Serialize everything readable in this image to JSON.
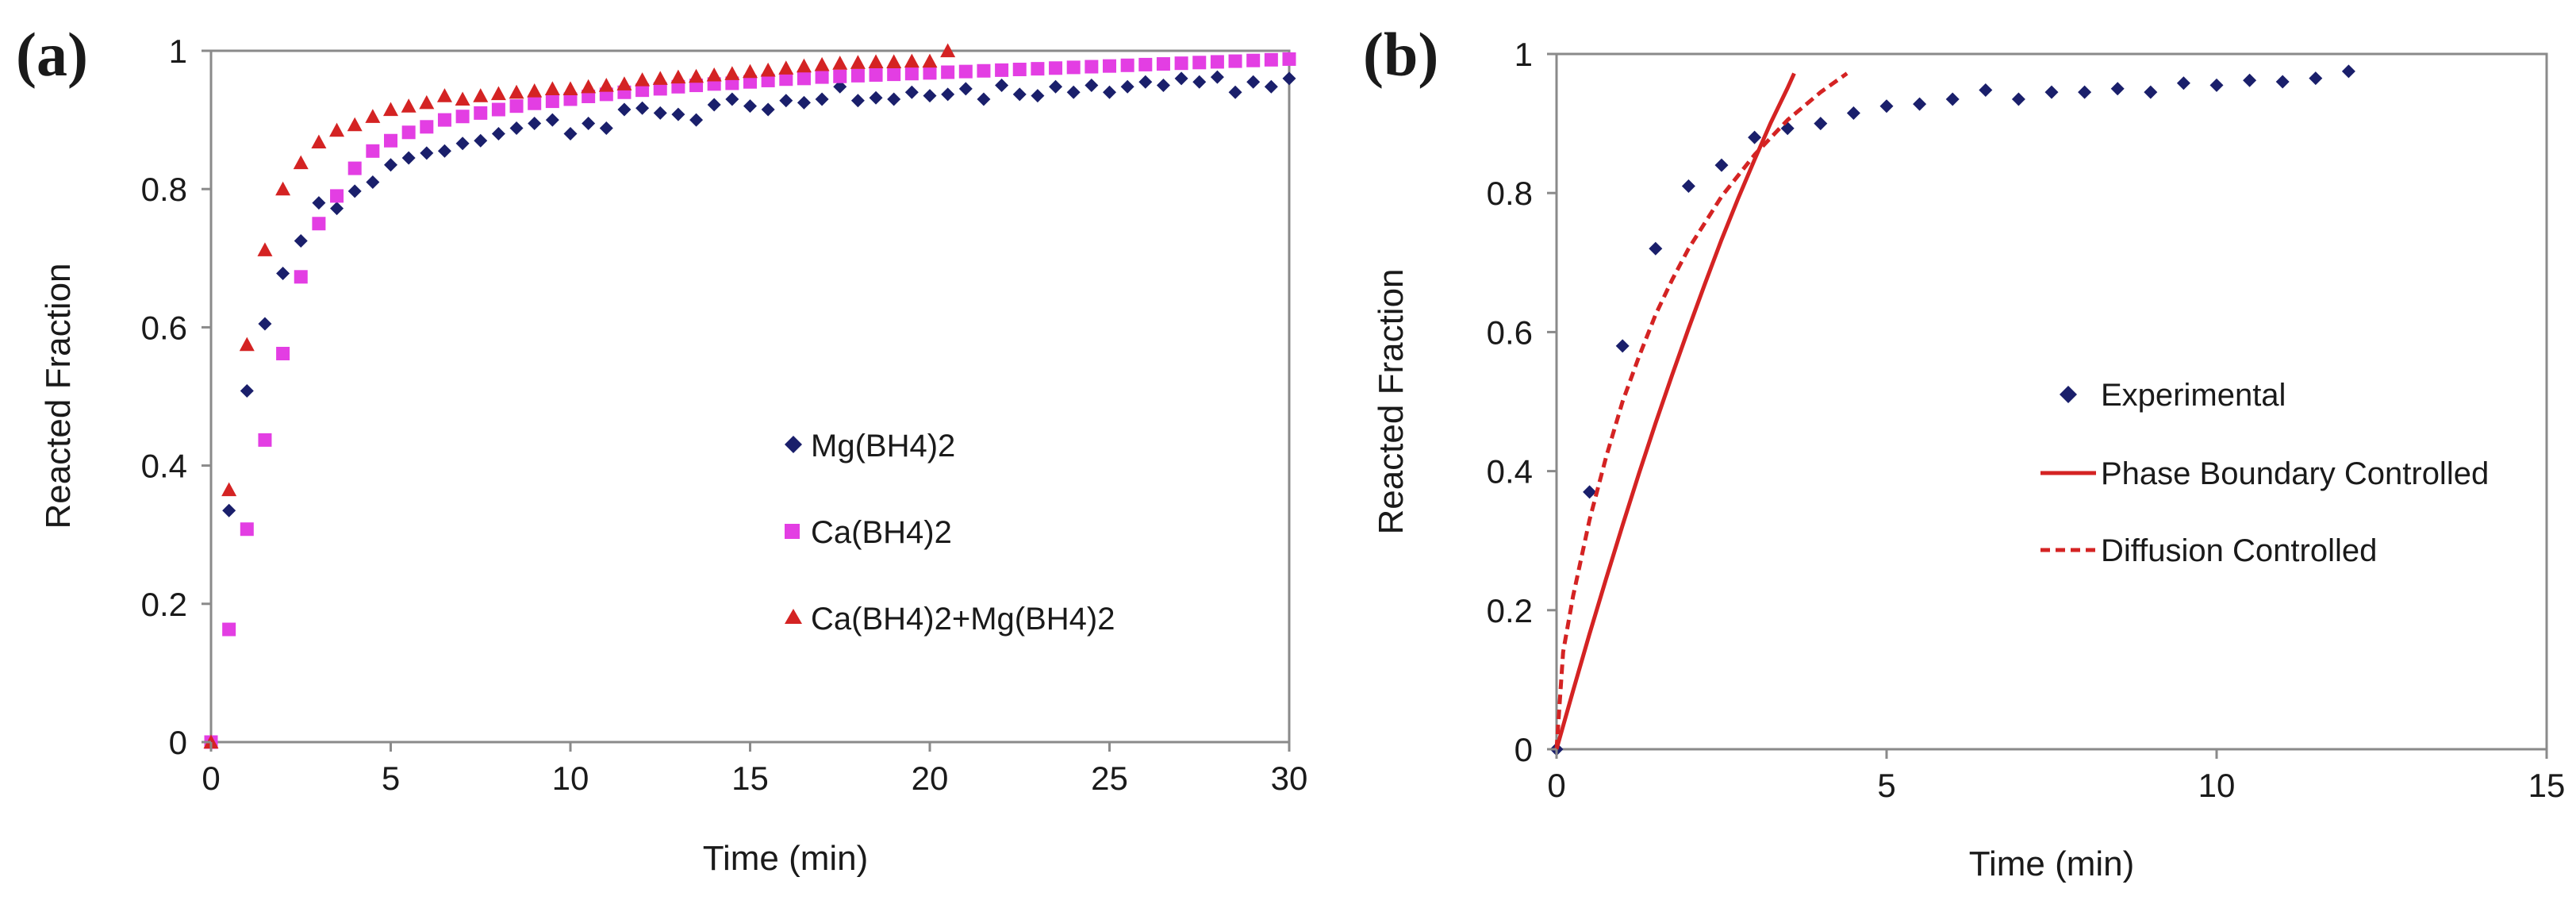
{
  "colors": {
    "mg": "#1a1f6b",
    "ca": "#e33ee3",
    "mix": "#d42323",
    "fit": "#d42323",
    "axis": "#8a8a8a",
    "text": "#1a1a1a"
  },
  "chart_data": [
    {
      "panel_label": "(a)",
      "type": "scatter",
      "xlabel": "Time (min)",
      "ylabel": "Reacted Fraction",
      "xlim": [
        0,
        30
      ],
      "ylim": [
        0,
        1
      ],
      "x_ticks": [
        0,
        5,
        10,
        15,
        20,
        25,
        30
      ],
      "y_ticks": [
        0,
        0.2,
        0.4,
        0.6,
        0.8,
        1
      ],
      "x_tick_labels": [
        "0",
        "5",
        "10",
        "15",
        "20",
        "25",
        "30"
      ],
      "y_tick_labels": [
        "0",
        "0.2",
        "0.4",
        "0.6",
        "0.8",
        "1"
      ],
      "grid": false,
      "legend_position": "center-right",
      "series": [
        {
          "name": "Mg(BH4)2",
          "marker": "diamond",
          "color": "#1a1f6b",
          "points": [
            [
              0,
              0
            ],
            [
              0.5,
              0.335
            ],
            [
              1,
              0.508
            ],
            [
              1.5,
              0.605
            ],
            [
              2,
              0.678
            ],
            [
              2.5,
              0.725
            ],
            [
              3,
              0.78
            ],
            [
              3.5,
              0.772
            ],
            [
              4,
              0.797
            ],
            [
              4.5,
              0.81
            ],
            [
              5,
              0.835
            ],
            [
              5.5,
              0.845
            ],
            [
              6,
              0.852
            ],
            [
              6.5,
              0.855
            ],
            [
              7,
              0.866
            ],
            [
              7.5,
              0.87
            ],
            [
              8,
              0.88
            ],
            [
              8.5,
              0.888
            ],
            [
              9,
              0.895
            ],
            [
              9.5,
              0.9
            ],
            [
              10,
              0.88
            ],
            [
              10.5,
              0.895
            ],
            [
              11,
              0.888
            ],
            [
              11.5,
              0.915
            ],
            [
              12,
              0.917
            ],
            [
              12.5,
              0.91
            ],
            [
              13,
              0.908
            ],
            [
              13.5,
              0.9
            ],
            [
              14,
              0.922
            ],
            [
              14.5,
              0.93
            ],
            [
              15,
              0.92
            ],
            [
              15.5,
              0.915
            ],
            [
              16,
              0.928
            ],
            [
              16.5,
              0.925
            ],
            [
              17,
              0.93
            ],
            [
              17.5,
              0.948
            ],
            [
              18,
              0.928
            ],
            [
              18.5,
              0.932
            ],
            [
              19,
              0.93
            ],
            [
              19.5,
              0.94
            ],
            [
              20,
              0.935
            ],
            [
              20.5,
              0.937
            ],
            [
              21,
              0.945
            ],
            [
              21.5,
              0.93
            ],
            [
              22,
              0.95
            ],
            [
              22.5,
              0.937
            ],
            [
              23,
              0.935
            ],
            [
              23.5,
              0.948
            ],
            [
              24,
              0.94
            ],
            [
              24.5,
              0.95
            ],
            [
              25,
              0.94
            ],
            [
              25.5,
              0.948
            ],
            [
              26,
              0.955
            ],
            [
              26.5,
              0.95
            ],
            [
              27,
              0.96
            ],
            [
              27.5,
              0.955
            ],
            [
              28,
              0.962
            ],
            [
              28.5,
              0.94
            ],
            [
              29,
              0.955
            ],
            [
              29.5,
              0.948
            ],
            [
              30,
              0.96
            ]
          ]
        },
        {
          "name": "Ca(BH4)2",
          "marker": "square",
          "color": "#e33ee3",
          "points": [
            [
              0,
              0
            ],
            [
              0.5,
              0.163
            ],
            [
              1,
              0.308
            ],
            [
              1.5,
              0.437
            ],
            [
              2,
              0.562
            ],
            [
              2.5,
              0.673
            ],
            [
              3,
              0.75
            ],
            [
              3.5,
              0.79
            ],
            [
              4,
              0.83
            ],
            [
              4.5,
              0.855
            ],
            [
              5,
              0.87
            ],
            [
              5.5,
              0.882
            ],
            [
              6,
              0.89
            ],
            [
              6.5,
              0.9
            ],
            [
              7,
              0.905
            ],
            [
              7.5,
              0.91
            ],
            [
              8,
              0.915
            ],
            [
              8.5,
              0.92
            ],
            [
              9,
              0.924
            ],
            [
              9.5,
              0.927
            ],
            [
              10,
              0.93
            ],
            [
              10.5,
              0.934
            ],
            [
              11,
              0.937
            ],
            [
              11.5,
              0.94
            ],
            [
              12,
              0.943
            ],
            [
              12.5,
              0.945
            ],
            [
              13,
              0.948
            ],
            [
              13.5,
              0.95
            ],
            [
              14,
              0.952
            ],
            [
              14.5,
              0.953
            ],
            [
              15,
              0.955
            ],
            [
              15.5,
              0.957
            ],
            [
              16,
              0.959
            ],
            [
              16.5,
              0.96
            ],
            [
              17,
              0.962
            ],
            [
              17.5,
              0.963
            ],
            [
              18,
              0.964
            ],
            [
              18.5,
              0.965
            ],
            [
              19,
              0.966
            ],
            [
              19.5,
              0.967
            ],
            [
              20,
              0.968
            ],
            [
              20.5,
              0.969
            ],
            [
              21,
              0.97
            ],
            [
              21.5,
              0.971
            ],
            [
              22,
              0.972
            ],
            [
              22.5,
              0.973
            ],
            [
              23,
              0.974
            ],
            [
              23.5,
              0.975
            ],
            [
              24,
              0.976
            ],
            [
              24.5,
              0.977
            ],
            [
              25,
              0.978
            ],
            [
              25.5,
              0.979
            ],
            [
              26,
              0.98
            ],
            [
              26.5,
              0.981
            ],
            [
              27,
              0.982
            ],
            [
              27.5,
              0.983
            ],
            [
              28,
              0.984
            ],
            [
              28.5,
              0.985
            ],
            [
              29,
              0.986
            ],
            [
              29.5,
              0.987
            ],
            [
              30,
              0.988
            ]
          ]
        },
        {
          "name": "Ca(BH4)2+Mg(BH4)2",
          "marker": "triangle",
          "color": "#d42323",
          "points": [
            [
              0,
              0
            ],
            [
              0.5,
              0.365
            ],
            [
              1,
              0.575
            ],
            [
              1.5,
              0.712
            ],
            [
              2,
              0.8
            ],
            [
              2.5,
              0.838
            ],
            [
              3,
              0.868
            ],
            [
              3.5,
              0.885
            ],
            [
              4,
              0.893
            ],
            [
              4.5,
              0.905
            ],
            [
              5,
              0.915
            ],
            [
              5.5,
              0.92
            ],
            [
              6,
              0.925
            ],
            [
              6.5,
              0.935
            ],
            [
              7,
              0.93
            ],
            [
              7.5,
              0.935
            ],
            [
              8,
              0.938
            ],
            [
              8.5,
              0.94
            ],
            [
              9,
              0.942
            ],
            [
              9.5,
              0.945
            ],
            [
              10,
              0.945
            ],
            [
              10.5,
              0.948
            ],
            [
              11,
              0.95
            ],
            [
              11.5,
              0.952
            ],
            [
              12,
              0.958
            ],
            [
              12.5,
              0.96
            ],
            [
              13,
              0.962
            ],
            [
              13.5,
              0.963
            ],
            [
              14,
              0.965
            ],
            [
              14.5,
              0.967
            ],
            [
              15,
              0.97
            ],
            [
              15.5,
              0.972
            ],
            [
              16,
              0.975
            ],
            [
              16.5,
              0.978
            ],
            [
              17,
              0.98
            ],
            [
              17.5,
              0.982
            ],
            [
              18,
              0.983
            ],
            [
              18.5,
              0.984
            ],
            [
              19,
              0.984
            ],
            [
              19.5,
              0.985
            ],
            [
              20,
              0.985
            ],
            [
              20.5,
              1.0
            ]
          ]
        }
      ]
    },
    {
      "panel_label": "(b)",
      "type": "scatter",
      "xlabel": "Time (min)",
      "ylabel": "Reacted Fraction",
      "xlim": [
        0,
        15
      ],
      "ylim": [
        0,
        1
      ],
      "x_ticks": [
        0,
        5,
        10,
        15
      ],
      "y_ticks": [
        0,
        0.2,
        0.4,
        0.6,
        0.8,
        1
      ],
      "x_tick_labels": [
        "0",
        "5",
        "10",
        "15"
      ],
      "y_tick_labels": [
        "0",
        "0.2",
        "0.4",
        "0.6",
        "0.8",
        "1"
      ],
      "grid": false,
      "legend_position": "center-right",
      "series": [
        {
          "name": "Experimental",
          "marker": "diamond",
          "color": "#1a1f6b",
          "points": [
            [
              0,
              0
            ],
            [
              0.5,
              0.37
            ],
            [
              1,
              0.58
            ],
            [
              1.5,
              0.72
            ],
            [
              2,
              0.81
            ],
            [
              2.5,
              0.84
            ],
            [
              3,
              0.88
            ],
            [
              3.5,
              0.893
            ],
            [
              4,
              0.9
            ],
            [
              4.5,
              0.915
            ],
            [
              5,
              0.925
            ],
            [
              5.5,
              0.928
            ],
            [
              6,
              0.935
            ],
            [
              6.5,
              0.948
            ],
            [
              7,
              0.935
            ],
            [
              7.5,
              0.945
            ],
            [
              8,
              0.945
            ],
            [
              8.5,
              0.95
            ],
            [
              9,
              0.945
            ],
            [
              9.5,
              0.958
            ],
            [
              10,
              0.955
            ],
            [
              10.5,
              0.962
            ],
            [
              11,
              0.96
            ],
            [
              11.5,
              0.965
            ],
            [
              12,
              0.975
            ]
          ]
        },
        {
          "name": "Phase Boundary Controlled",
          "line": "solid",
          "color": "#d42323",
          "points": [
            [
              0,
              0
            ],
            [
              0.25,
              0.084
            ],
            [
              0.5,
              0.166
            ],
            [
              0.75,
              0.245
            ],
            [
              1,
              0.322
            ],
            [
              1.25,
              0.397
            ],
            [
              1.5,
              0.469
            ],
            [
              1.75,
              0.538
            ],
            [
              2,
              0.605
            ],
            [
              2.25,
              0.67
            ],
            [
              2.5,
              0.733
            ],
            [
              2.75,
              0.792
            ],
            [
              3,
              0.848
            ],
            [
              3.25,
              0.902
            ],
            [
              3.5,
              0.951
            ],
            [
              3.6,
              0.972
            ]
          ]
        },
        {
          "name": "Diffusion Controlled",
          "line": "dashed",
          "color": "#d42323",
          "points": [
            [
              0,
              0
            ],
            [
              0.1,
              0.14
            ],
            [
              0.25,
              0.22
            ],
            [
              0.5,
              0.33
            ],
            [
              0.75,
              0.42
            ],
            [
              1,
              0.5
            ],
            [
              1.25,
              0.565
            ],
            [
              1.5,
              0.625
            ],
            [
              1.75,
              0.675
            ],
            [
              2,
              0.72
            ],
            [
              2.5,
              0.795
            ],
            [
              3,
              0.855
            ],
            [
              3.5,
              0.905
            ],
            [
              4,
              0.945
            ],
            [
              4.4,
              0.972
            ]
          ]
        }
      ]
    }
  ]
}
